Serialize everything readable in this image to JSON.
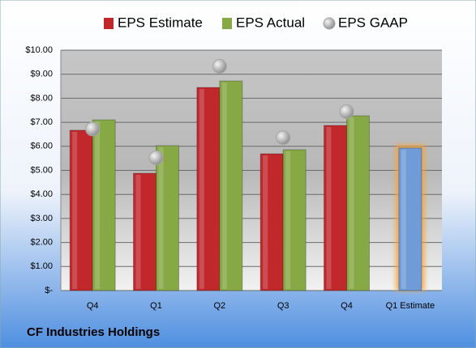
{
  "chart_data": {
    "type": "bar",
    "title": "CF Industries Holdings",
    "categories": [
      "Q4",
      "Q1",
      "Q2",
      "Q3",
      "Q4",
      "Q1 Estimate"
    ],
    "series": [
      {
        "name": "EPS Estimate",
        "color": "#c0282c",
        "values": [
          6.67,
          4.88,
          8.45,
          5.69,
          6.87,
          5.93
        ],
        "highlight_index": 5,
        "highlight_color": "#6f9bd6"
      },
      {
        "name": "EPS Actual",
        "color": "#86a845",
        "values": [
          7.1,
          6.03,
          8.72,
          5.86,
          7.27,
          null
        ]
      },
      {
        "name": "EPS GAAP",
        "color": "#a6a6a6",
        "marker": "circle",
        "values": [
          6.72,
          5.52,
          9.33,
          6.36,
          7.44,
          null
        ]
      }
    ],
    "ylim": [
      0,
      10
    ],
    "yticks": [
      {
        "value": 0,
        "label": "$-"
      },
      {
        "value": 1,
        "label": "$1.00"
      },
      {
        "value": 2,
        "label": "$2.00"
      },
      {
        "value": 3,
        "label": "$3.00"
      },
      {
        "value": 4,
        "label": "$4.00"
      },
      {
        "value": 5,
        "label": "$5.00"
      },
      {
        "value": 6,
        "label": "$6.00"
      },
      {
        "value": 7,
        "label": "$7.00"
      },
      {
        "value": 8,
        "label": "$8.00"
      },
      {
        "value": 9,
        "label": "$9.00"
      },
      {
        "value": 10,
        "label": "$10.00"
      }
    ],
    "grid": true
  }
}
